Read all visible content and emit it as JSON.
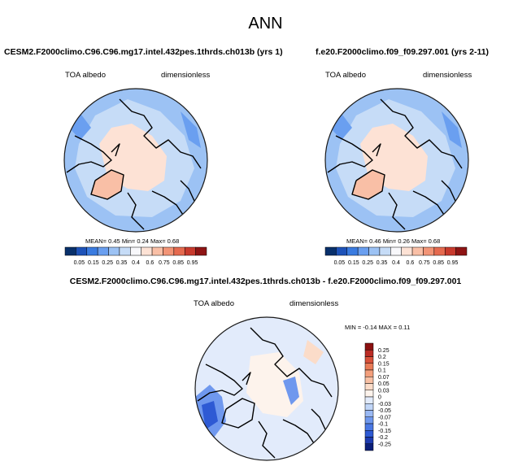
{
  "page": {
    "title": "ANN"
  },
  "colors": {
    "full_palette": [
      "#08306b",
      "#1d52b8",
      "#3a7be0",
      "#6a9ff0",
      "#9cc2f4",
      "#c6dcf7",
      "#f8f8fb",
      "#fde2d5",
      "#f9bfa6",
      "#f29476",
      "#e56a4f",
      "#c83a2d",
      "#8e1414"
    ],
    "diff_palette": [
      "#0b1f7a",
      "#1d3bb0",
      "#2e5ad4",
      "#4a78e4",
      "#6f98ee",
      "#9ab9f4",
      "#c1d6f8",
      "#e2ebfb",
      "#fdf3ec",
      "#fbdcc9",
      "#f8c0a4",
      "#f39f7c",
      "#e97b57",
      "#d8513a",
      "#bb2c25",
      "#8b1010"
    ],
    "border": "#1a1a1a"
  },
  "chart_data": [
    {
      "type": "heatmap",
      "projection": "polar stereographic (north)",
      "title": "CESM2.F2000climo.C96.C96.mg17.intel.432pes.1thrds.ch013b (yrs 1)",
      "left_label": "TOA albedo",
      "right_label": "dimensionless",
      "stats_label": "MEAN=  0.45  Min=  0.24  Max=  0.68",
      "stats": {
        "mean": 0.45,
        "min": 0.24,
        "max": 0.68
      },
      "colorbar_levels": [
        "0.05",
        "0.15",
        "0.25",
        "0.35",
        "0.4",
        "0.6",
        "0.75",
        "0.85",
        "0.95"
      ]
    },
    {
      "type": "heatmap",
      "projection": "polar stereographic (north)",
      "title": "f.e20.F2000climo.f09_f09.297.001 (yrs 2-11)",
      "left_label": "TOA albedo",
      "right_label": "dimensionless",
      "stats_label": "MEAN=  0.46  Min=  0.26  Max=  0.68",
      "stats": {
        "mean": 0.46,
        "min": 0.26,
        "max": 0.68
      },
      "colorbar_levels": [
        "0.05",
        "0.15",
        "0.25",
        "0.35",
        "0.4",
        "0.6",
        "0.75",
        "0.85",
        "0.95"
      ]
    },
    {
      "type": "heatmap",
      "projection": "polar stereographic (north)",
      "title": "CESM2.F2000climo.C96.C96.mg17.intel.432pes.1thrds.ch013b - f.e20.F2000climo.f09_f09.297.001",
      "left_label": "TOA albedo",
      "right_label": "dimensionless",
      "stats_label": "MIN = -0.14 MAX =   0.11",
      "stats": {
        "min": -0.14,
        "max": 0.11
      },
      "colorbar_levels": [
        "0.25",
        "0.2",
        "0.15",
        "0.1",
        "0.07",
        "0.05",
        "0.03",
        "0",
        "-0.03",
        "-0.05",
        "-0.07",
        "-0.1",
        "-0.15",
        "-0.2",
        "-0.25"
      ]
    }
  ]
}
